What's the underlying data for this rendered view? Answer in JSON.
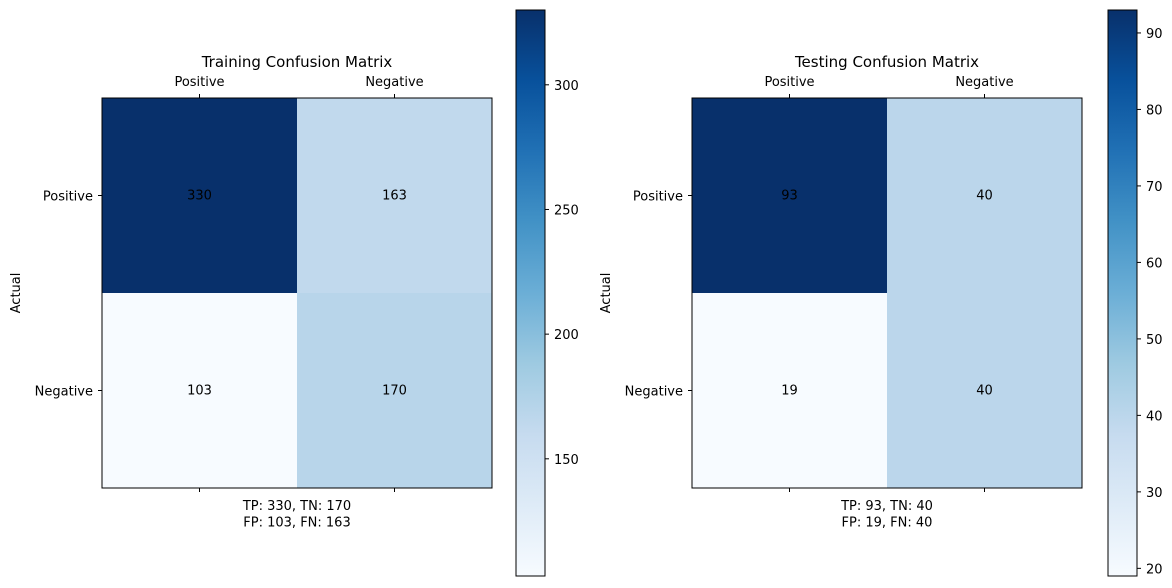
{
  "chart_data": [
    {
      "type": "heatmap",
      "title": "Training Confusion Matrix",
      "ylabel": "Actual",
      "xlabel": "TP: 330, TN: 170\nFP: 103, FN: 163",
      "x_categories": [
        "Positive",
        "Negative"
      ],
      "y_categories": [
        "Positive",
        "Negative"
      ],
      "values": [
        [
          330,
          163
        ],
        [
          103,
          170
        ]
      ],
      "colormap": "Blues",
      "colorbar": {
        "min": 103,
        "max": 330,
        "ticks": [
          150,
          200,
          250,
          300
        ]
      }
    },
    {
      "type": "heatmap",
      "title": "Testing Confusion Matrix",
      "ylabel": "Actual",
      "xlabel": "TP: 93, TN: 40\nFP: 19, FN: 40",
      "x_categories": [
        "Positive",
        "Negative"
      ],
      "y_categories": [
        "Positive",
        "Negative"
      ],
      "values": [
        [
          93,
          40
        ],
        [
          19,
          40
        ]
      ],
      "colormap": "Blues",
      "colorbar": {
        "min": 19,
        "max": 93,
        "ticks": [
          20,
          30,
          40,
          50,
          60,
          70,
          80,
          90
        ]
      }
    }
  ]
}
